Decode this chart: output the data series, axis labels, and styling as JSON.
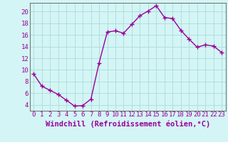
{
  "x": [
    0,
    1,
    2,
    3,
    4,
    5,
    6,
    7,
    8,
    9,
    10,
    11,
    12,
    13,
    14,
    15,
    16,
    17,
    18,
    19,
    20,
    21,
    22,
    23
  ],
  "y": [
    9.3,
    7.2,
    6.5,
    5.8,
    4.8,
    3.8,
    3.9,
    5.0,
    11.2,
    16.5,
    16.7,
    16.3,
    17.8,
    19.3,
    20.1,
    21.0,
    19.0,
    18.8,
    16.8,
    15.3,
    13.9,
    14.3,
    14.1,
    13.0
  ],
  "line_color": "#990099",
  "marker": "+",
  "markersize": 4,
  "linewidth": 1.0,
  "bg_color": "#d4f5f5",
  "grid_color": "#b0dede",
  "xlabel": "Windchill (Refroidissement éolien,°C)",
  "xlim": [
    -0.5,
    23.5
  ],
  "ylim": [
    3.0,
    21.5
  ],
  "yticks": [
    4,
    6,
    8,
    10,
    12,
    14,
    16,
    18,
    20
  ],
  "xticks": [
    0,
    1,
    2,
    3,
    4,
    5,
    6,
    7,
    8,
    9,
    10,
    11,
    12,
    13,
    14,
    15,
    16,
    17,
    18,
    19,
    20,
    21,
    22,
    23
  ],
  "tick_label_fontsize": 6.5,
  "xlabel_fontsize": 7.5,
  "tick_color": "#990099",
  "label_color": "#990099",
  "spine_color": "#777777"
}
